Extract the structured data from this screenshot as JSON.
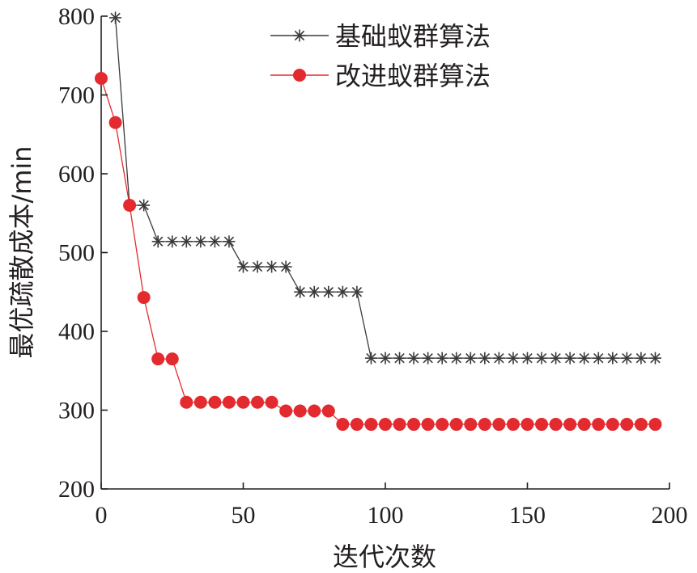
{
  "chart_data": {
    "type": "line",
    "xlabel": "迭代次数",
    "ylabel": "最优疏散成本/min",
    "xlim": [
      0,
      200
    ],
    "ylim": [
      200,
      800
    ],
    "xticks": [
      "0",
      "50",
      "100",
      "150",
      "200"
    ],
    "yticks": [
      "200",
      "300",
      "400",
      "500",
      "600",
      "700",
      "800"
    ],
    "legend_position": "top-center",
    "grid": false,
    "series": [
      {
        "name": "基础蚁群算法",
        "color": "#3a3a3a",
        "marker": "asterisk",
        "x": [
          5,
          10,
          15,
          20,
          25,
          30,
          35,
          40,
          45,
          50,
          55,
          60,
          65,
          70,
          75,
          80,
          85,
          90,
          95,
          100,
          105,
          110,
          115,
          120,
          125,
          130,
          135,
          140,
          145,
          150,
          155,
          160,
          165,
          170,
          175,
          180,
          185,
          190,
          195
        ],
        "y": [
          798,
          560,
          560,
          514,
          514,
          514,
          514,
          514,
          514,
          482,
          482,
          482,
          482,
          450,
          450,
          450,
          450,
          450,
          366,
          366,
          366,
          366,
          366,
          366,
          366,
          366,
          366,
          366,
          366,
          366,
          366,
          366,
          366,
          366,
          366,
          366,
          366,
          366,
          366
        ]
      },
      {
        "name": "改进蚁群算法",
        "color": "#e32a2f",
        "marker": "circle",
        "x": [
          0,
          5,
          10,
          15,
          20,
          25,
          30,
          35,
          40,
          45,
          50,
          55,
          60,
          65,
          70,
          75,
          80,
          85,
          90,
          95,
          100,
          105,
          110,
          115,
          120,
          125,
          130,
          135,
          140,
          145,
          150,
          155,
          160,
          165,
          170,
          175,
          180,
          185,
          190,
          195
        ],
        "y": [
          721,
          665,
          560,
          443,
          365,
          365,
          310,
          310,
          310,
          310,
          310,
          310,
          310,
          299,
          299,
          299,
          299,
          282,
          282,
          282,
          282,
          282,
          282,
          282,
          282,
          282,
          282,
          282,
          282,
          282,
          282,
          282,
          282,
          282,
          282,
          282,
          282,
          282,
          282,
          282
        ]
      }
    ]
  }
}
